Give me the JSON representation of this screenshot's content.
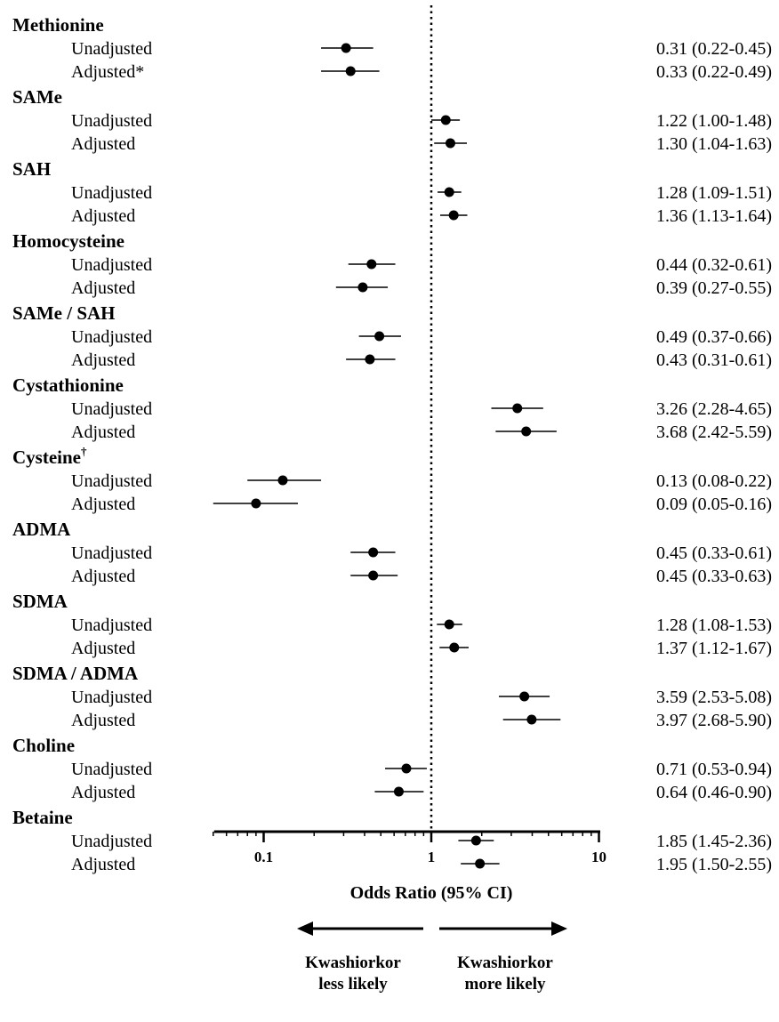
{
  "chart_data": {
    "type": "forest",
    "xlabel": "Odds  Ratio (95% CI)",
    "x_scale": "log",
    "xlim": [
      0.05,
      10
    ],
    "xticks": [
      0.1,
      1,
      10
    ],
    "xtick_labels": [
      "0.1",
      "1",
      "10"
    ],
    "reference_line": 1,
    "direction_labels": {
      "left": [
        "Kwashiorkor",
        "less likely"
      ],
      "right": [
        "Kwashiorkor",
        "more likely"
      ]
    },
    "groups": [
      {
        "name": "Methionine",
        "rows": [
          {
            "label": "Unadjusted",
            "or": 0.31,
            "lo": 0.22,
            "hi": 0.45,
            "text": "0.31 (0.22-0.45)"
          },
          {
            "label": "Adjusted*",
            "or": 0.33,
            "lo": 0.22,
            "hi": 0.49,
            "text": "0.33 (0.22-0.49)"
          }
        ]
      },
      {
        "name": "SAMe",
        "rows": [
          {
            "label": "Unadjusted",
            "or": 1.22,
            "lo": 1.0,
            "hi": 1.48,
            "text": "1.22 (1.00-1.48)"
          },
          {
            "label": "Adjusted",
            "or": 1.3,
            "lo": 1.04,
            "hi": 1.63,
            "text": "1.30 (1.04-1.63)"
          }
        ]
      },
      {
        "name": "SAH",
        "rows": [
          {
            "label": "Unadjusted",
            "or": 1.28,
            "lo": 1.09,
            "hi": 1.51,
            "text": "1.28 (1.09-1.51)"
          },
          {
            "label": "Adjusted",
            "or": 1.36,
            "lo": 1.13,
            "hi": 1.64,
            "text": "1.36 (1.13-1.64)"
          }
        ]
      },
      {
        "name": "Homocysteine",
        "rows": [
          {
            "label": "Unadjusted",
            "or": 0.44,
            "lo": 0.32,
            "hi": 0.61,
            "text": "0.44 (0.32-0.61)"
          },
          {
            "label": "Adjusted",
            "or": 0.39,
            "lo": 0.27,
            "hi": 0.55,
            "text": "0.39 (0.27-0.55)"
          }
        ]
      },
      {
        "name": "SAMe / SAH",
        "rows": [
          {
            "label": "Unadjusted",
            "or": 0.49,
            "lo": 0.37,
            "hi": 0.66,
            "text": "0.49 (0.37-0.66)"
          },
          {
            "label": "Adjusted",
            "or": 0.43,
            "lo": 0.31,
            "hi": 0.61,
            "text": "0.43 (0.31-0.61)"
          }
        ]
      },
      {
        "name": "Cystathionine",
        "rows": [
          {
            "label": "Unadjusted",
            "or": 3.26,
            "lo": 2.28,
            "hi": 4.65,
            "text": "3.26 (2.28-4.65)"
          },
          {
            "label": "Adjusted",
            "or": 3.68,
            "lo": 2.42,
            "hi": 5.59,
            "text": "3.68 (2.42-5.59)"
          }
        ]
      },
      {
        "name": "Cysteine",
        "sup": "†",
        "rows": [
          {
            "label": "Unadjusted",
            "or": 0.13,
            "lo": 0.08,
            "hi": 0.22,
            "text": "0.13 (0.08-0.22)"
          },
          {
            "label": "Adjusted",
            "or": 0.09,
            "lo": 0.05,
            "hi": 0.16,
            "text": "0.09 (0.05-0.16)"
          }
        ]
      },
      {
        "name": "ADMA",
        "rows": [
          {
            "label": "Unadjusted",
            "or": 0.45,
            "lo": 0.33,
            "hi": 0.61,
            "text": "0.45 (0.33-0.61)"
          },
          {
            "label": "Adjusted",
            "or": 0.45,
            "lo": 0.33,
            "hi": 0.63,
            "text": "0.45 (0.33-0.63)"
          }
        ]
      },
      {
        "name": "SDMA",
        "rows": [
          {
            "label": "Unadjusted",
            "or": 1.28,
            "lo": 1.08,
            "hi": 1.53,
            "text": "1.28 (1.08-1.53)"
          },
          {
            "label": "Adjusted",
            "or": 1.37,
            "lo": 1.12,
            "hi": 1.67,
            "text": "1.37 (1.12-1.67)"
          }
        ]
      },
      {
        "name": "SDMA / ADMA",
        "rows": [
          {
            "label": "Unadjusted",
            "or": 3.59,
            "lo": 2.53,
            "hi": 5.08,
            "text": "3.59 (2.53-5.08)"
          },
          {
            "label": "Adjusted",
            "or": 3.97,
            "lo": 2.68,
            "hi": 5.9,
            "text": "3.97 (2.68-5.90)"
          }
        ]
      },
      {
        "name": "Choline",
        "rows": [
          {
            "label": "Unadjusted",
            "or": 0.71,
            "lo": 0.53,
            "hi": 0.94,
            "text": "0.71 (0.53-0.94)"
          },
          {
            "label": "Adjusted",
            "or": 0.64,
            "lo": 0.46,
            "hi": 0.9,
            "text": "0.64 (0.46-0.90)"
          }
        ]
      },
      {
        "name": "Betaine",
        "rows": [
          {
            "label": "Unadjusted",
            "or": 1.85,
            "lo": 1.45,
            "hi": 2.36,
            "text": "1.85 (1.45-2.36)"
          },
          {
            "label": "Adjusted",
            "or": 1.95,
            "lo": 1.5,
            "hi": 2.55,
            "text": "1.95 (1.50-2.55)"
          }
        ]
      }
    ]
  }
}
